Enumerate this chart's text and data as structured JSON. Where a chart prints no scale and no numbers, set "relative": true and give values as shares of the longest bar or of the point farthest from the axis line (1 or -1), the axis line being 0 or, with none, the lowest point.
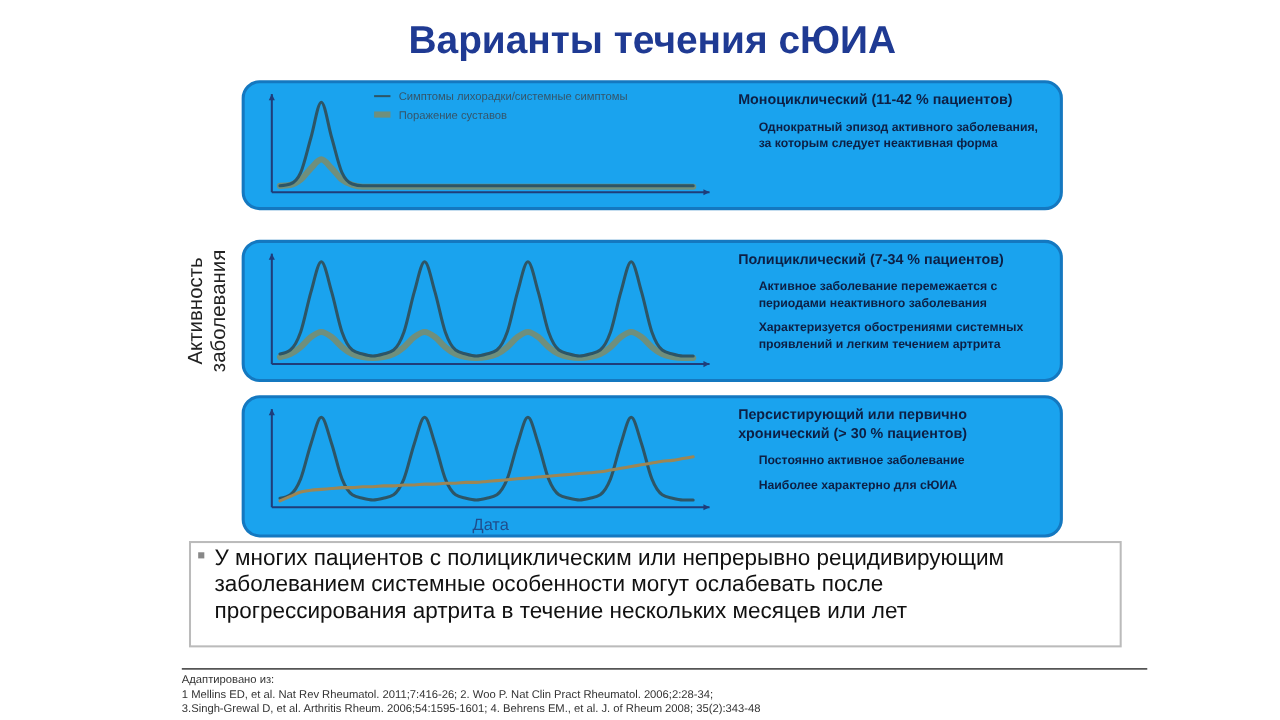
{
  "chart_data": [
    {
      "type": "line",
      "relative": true,
      "title": "Варианты течения сЮИА",
      "legend": "top",
      "categories": [
        null,
        null,
        null,
        null,
        null,
        null,
        null,
        null,
        null,
        null,
        null,
        null,
        null,
        null,
        null,
        null,
        null,
        null,
        null,
        null,
        null,
        null,
        null,
        null,
        null,
        null,
        null,
        null,
        null,
        null,
        null,
        null,
        null,
        null,
        null,
        null,
        null,
        null,
        null,
        null,
        null
      ],
      "series": [
        {
          "name": "Поражение суставов",
          "color": "#6f8f7c",
          "values": [
            0.05,
            0.06,
            0.12,
            0.25,
            0.35,
            0.25,
            0.12,
            0.06,
            0.04,
            0.04,
            0.04,
            0.04,
            0.04,
            0.04,
            0.04,
            0.04,
            0.04,
            0.04,
            0.04,
            0.04,
            0.04,
            0.04,
            0.04,
            0.04,
            0.04,
            0.04,
            0.04,
            0.04,
            0.04,
            0.04,
            0.04,
            0.04,
            0.04,
            0.04,
            0.04,
            0.04,
            0.04,
            0.04,
            0.04,
            0.04,
            0.04
          ]
        },
        {
          "name": "Симптомы лихорадки/системные симптомы",
          "color": "#2d5566",
          "values": [
            0.05,
            0.07,
            0.2,
            0.6,
            1,
            0.6,
            0.2,
            0.07,
            0.05,
            0.05,
            0.05,
            0.05,
            0.05,
            0.05,
            0.05,
            0.05,
            0.05,
            0.05,
            0.05,
            0.05,
            0.05,
            0.05,
            0.05,
            0.05,
            0.05,
            0.05,
            0.05,
            0.05,
            0.05,
            0.05,
            0.05,
            0.05,
            0.05,
            0.05,
            0.05,
            0.05,
            0.05,
            0.05,
            0.05,
            0.05,
            0.05
          ]
        }
      ],
      "annotations": [
        "Моноциклический (11-42 % пациентов)",
        "Однократный эпизод активного заболевания, за которым следует неактивная форма"
      ]
    },
    {
      "type": "line",
      "relative": true,
      "ylabel": "Активность заболевания",
      "categories": [
        null,
        null,
        null,
        null,
        null,
        null,
        null,
        null,
        null,
        null,
        null,
        null,
        null,
        null,
        null,
        null,
        null,
        null,
        null,
        null,
        null,
        null,
        null,
        null,
        null,
        null,
        null,
        null,
        null,
        null,
        null,
        null,
        null,
        null,
        null,
        null,
        null,
        null,
        null,
        null,
        null
      ],
      "series": [
        {
          "color": "#6f8f7c",
          "values": [
            0.05,
            0.08,
            0.15,
            0.25,
            0.3,
            0.25,
            0.15,
            0.08,
            0.05,
            0.04,
            0.05,
            0.08,
            0.15,
            0.25,
            0.3,
            0.25,
            0.15,
            0.08,
            0.05,
            0.04,
            0.05,
            0.08,
            0.15,
            0.25,
            0.3,
            0.25,
            0.15,
            0.08,
            0.05,
            0.04,
            0.05,
            0.08,
            0.15,
            0.25,
            0.3,
            0.25,
            0.15,
            0.08,
            0.05,
            0.04,
            0.04
          ]
        },
        {
          "color": "#2d5566",
          "values": [
            0.08,
            0.12,
            0.3,
            0.7,
            1,
            0.7,
            0.3,
            0.12,
            0.08,
            0.06,
            0.08,
            0.12,
            0.3,
            0.7,
            1,
            0.7,
            0.3,
            0.12,
            0.08,
            0.06,
            0.08,
            0.12,
            0.3,
            0.7,
            1,
            0.7,
            0.3,
            0.12,
            0.08,
            0.06,
            0.08,
            0.12,
            0.3,
            0.7,
            1,
            0.7,
            0.3,
            0.12,
            0.08,
            0.06,
            0.06
          ]
        }
      ],
      "annotations": [
        "Полициклический (7-34 % пациентов)",
        "Активное заболевание перемежается с периодами неактивного заболевания",
        "Характеризуется обострениями системных проявлений и легким течением артрита"
      ]
    },
    {
      "type": "line",
      "relative": true,
      "xlabel": "Дата",
      "categories": [
        null,
        null,
        null,
        null,
        null,
        null,
        null,
        null,
        null,
        null,
        null,
        null,
        null,
        null,
        null,
        null,
        null,
        null,
        null,
        null,
        null,
        null,
        null,
        null,
        null,
        null,
        null,
        null,
        null,
        null,
        null,
        null,
        null,
        null,
        null,
        null,
        null,
        null,
        null,
        null,
        null
      ],
      "series": [
        {
          "color": "#2d5566",
          "values": [
            0.08,
            0.12,
            0.3,
            0.7,
            1,
            0.7,
            0.3,
            0.12,
            0.08,
            0.06,
            0.08,
            0.12,
            0.3,
            0.7,
            1,
            0.7,
            0.3,
            0.12,
            0.08,
            0.06,
            0.08,
            0.12,
            0.3,
            0.7,
            1,
            0.7,
            0.3,
            0.12,
            0.08,
            0.06,
            0.08,
            0.12,
            0.3,
            0.7,
            1,
            0.7,
            0.3,
            0.12,
            0.08,
            0.06,
            0.06
          ]
        },
        {
          "color": "#9c8655",
          "values": [
            0.05,
            0.1,
            0.15,
            0.17,
            0.18,
            0.19,
            0.2,
            0.2,
            0.21,
            0.21,
            0.22,
            0.22,
            0.23,
            0.23,
            0.24,
            0.24,
            0.25,
            0.25,
            0.26,
            0.26,
            0.27,
            0.28,
            0.29,
            0.3,
            0.31,
            0.32,
            0.33,
            0.34,
            0.35,
            0.36,
            0.37,
            0.38,
            0.4,
            0.42,
            0.44,
            0.46,
            0.48,
            0.5,
            0.51,
            0.53,
            0.55
          ]
        }
      ],
      "annotations": [
        "Персистирующий или первично хронический (> 30 % пациентов)",
        "Постоянно активное заболевание",
        "Наиболее характерно для сЮИА"
      ]
    },
    {
      "type": "other",
      "annotations": [
        "У многих пациентов с полициклическим или непрерывно рецидивирующим заболеванием системные особенности могут ослабевать после прогрессирования артрита в течение нескольких месяцев или лет",
        "Адаптировано из:",
        "1 Mellins ED, et al. Nat Rev Rheumatol. 2011;7:416-26; 2. Woo P. Nat Clin Pract Rheumatol. 2006;2:28-34;",
        "3.Singh-Grewal D, et al. Arthritis Rheum. 2006;54:1595-1601; 4. Behrens EM., et al. J. of Rheum 2008; 35(2):343-48"
      ]
    }
  ]
}
